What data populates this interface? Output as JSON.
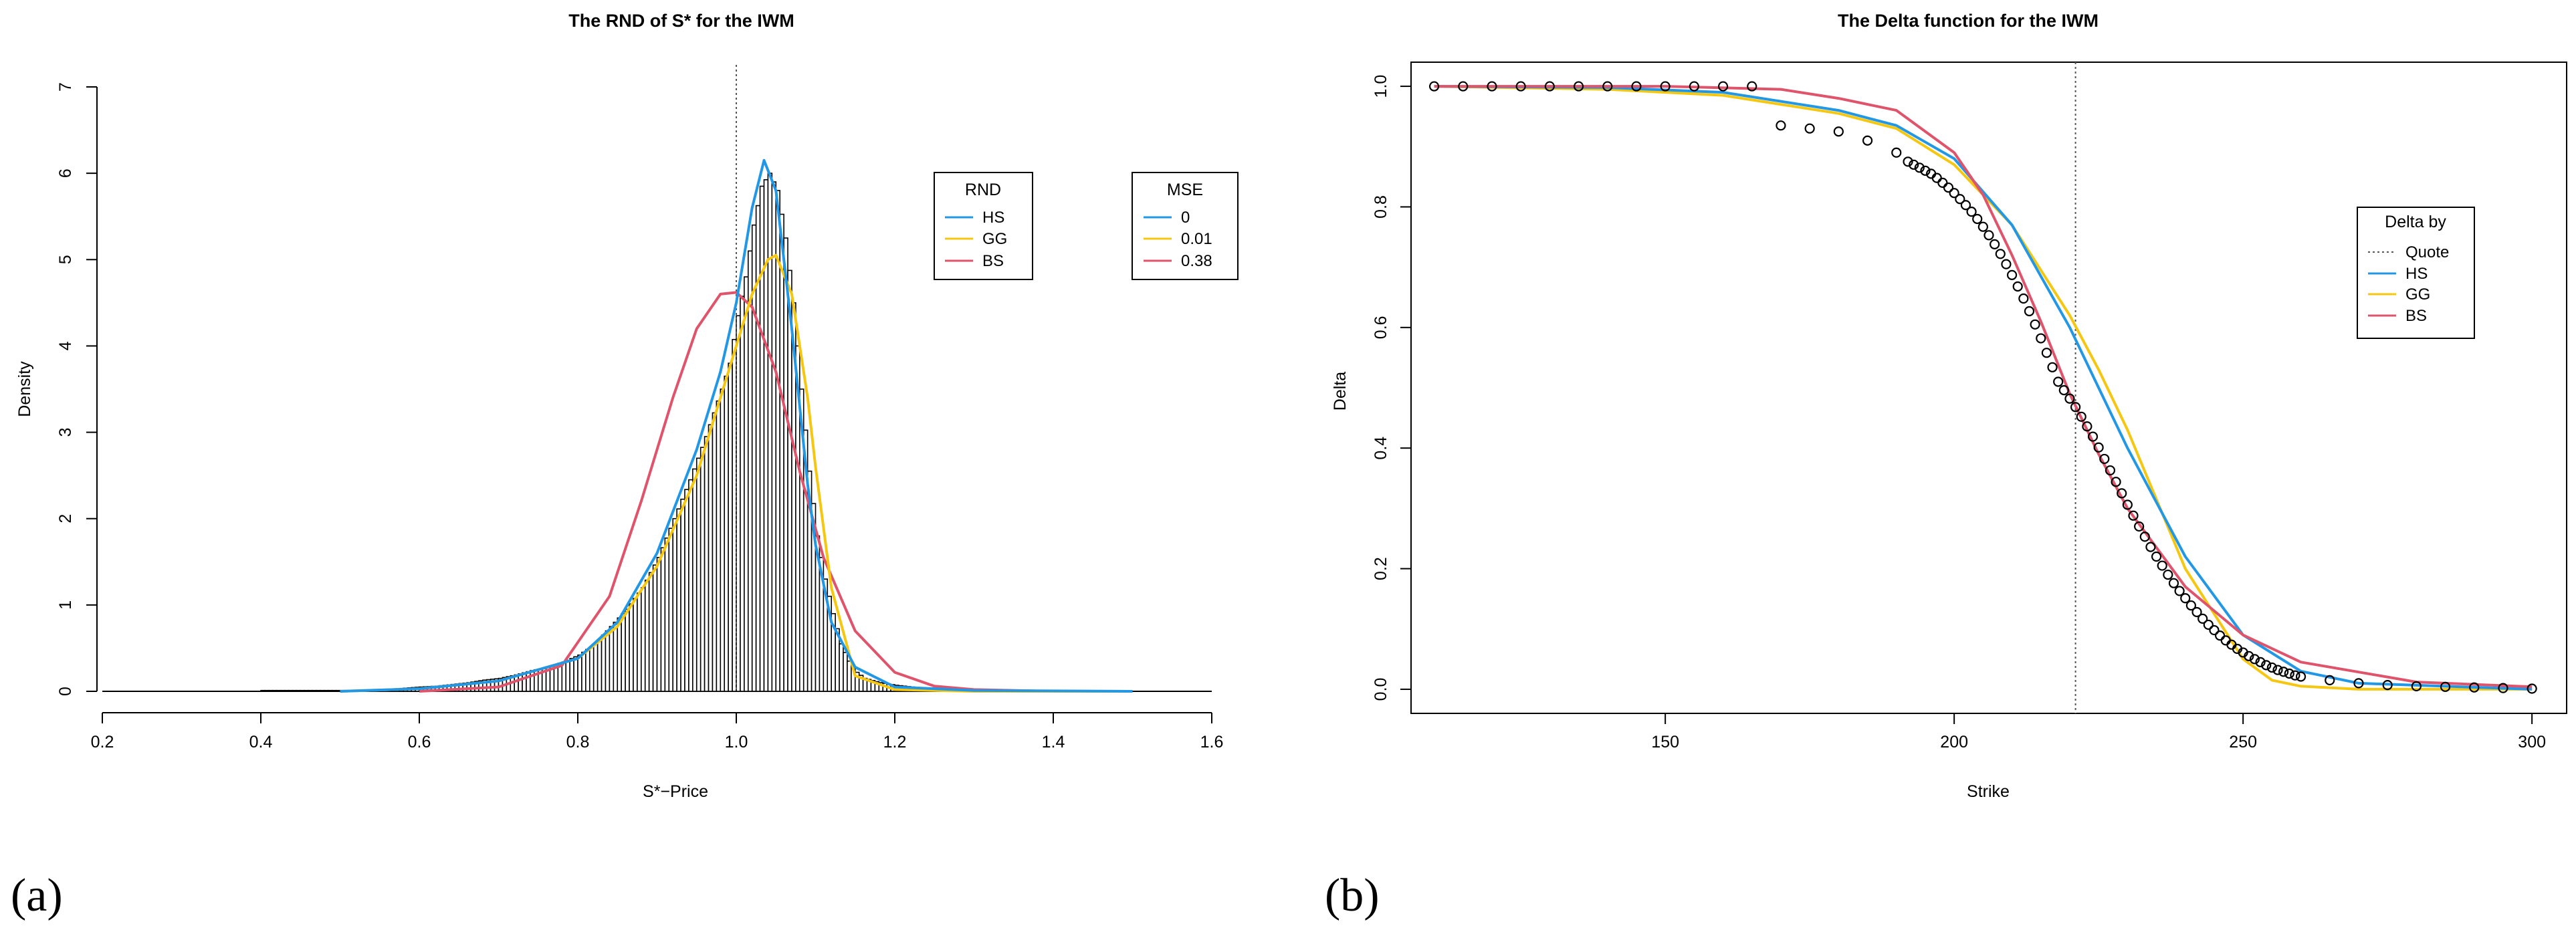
{
  "panels": [
    {
      "label": "(a)"
    },
    {
      "label": "(b)"
    }
  ],
  "colors": {
    "HS": "#2297E6",
    "GG": "#F5C710",
    "BS": "#DF536B",
    "quote": "#555555",
    "bars": "#000000"
  },
  "chart_data": [
    {
      "type": "histogram",
      "title": "The RND of S* for the IWM",
      "xlabel": "S*−Price",
      "ylabel": "Density",
      "xlim": [
        0.2,
        1.6
      ],
      "ylim": [
        0,
        7
      ],
      "xticks": [
        0.2,
        0.4,
        0.6,
        0.8,
        1.0,
        1.2,
        1.4,
        1.6
      ],
      "xtick_labels": [
        "0.2",
        "0.4",
        "0.6",
        "0.8",
        "1.0",
        "1.2",
        "1.4",
        "1.6"
      ],
      "yticks": [
        0,
        1,
        2,
        3,
        4,
        5,
        6,
        7
      ],
      "ytick_labels": [
        "0",
        "1",
        "2",
        "3",
        "4",
        "5",
        "6",
        "7"
      ],
      "quote_line_x": 1.0,
      "histogram": {
        "bin_width": 0.005,
        "bins": [
          [
            0.4,
            0.01
          ],
          [
            0.41,
            0.01
          ],
          [
            0.48,
            0.01
          ],
          [
            0.53,
            0.01
          ],
          [
            0.55,
            0.02
          ],
          [
            0.57,
            0.03
          ],
          [
            0.6,
            0.05
          ],
          [
            0.62,
            0.06
          ],
          [
            0.64,
            0.08
          ],
          [
            0.66,
            0.1
          ],
          [
            0.68,
            0.13
          ],
          [
            0.7,
            0.15
          ],
          [
            0.72,
            0.19
          ],
          [
            0.74,
            0.24
          ],
          [
            0.76,
            0.28
          ],
          [
            0.78,
            0.34
          ],
          [
            0.8,
            0.42
          ],
          [
            0.82,
            0.55
          ],
          [
            0.84,
            0.75
          ],
          [
            0.86,
            0.95
          ],
          [
            0.88,
            1.2
          ],
          [
            0.9,
            1.55
          ],
          [
            0.92,
            2.0
          ],
          [
            0.94,
            2.45
          ],
          [
            0.96,
            2.95
          ],
          [
            0.98,
            3.5
          ],
          [
            0.99,
            3.8
          ],
          [
            1.0,
            4.35
          ],
          [
            1.01,
            4.8
          ],
          [
            1.02,
            5.4
          ],
          [
            1.03,
            5.85
          ],
          [
            1.04,
            6.0
          ],
          [
            1.05,
            5.8
          ],
          [
            1.06,
            5.25
          ],
          [
            1.07,
            4.5
          ],
          [
            1.08,
            3.5
          ],
          [
            1.09,
            2.55
          ],
          [
            1.1,
            1.8
          ],
          [
            1.11,
            1.3
          ],
          [
            1.12,
            0.9
          ],
          [
            1.13,
            0.55
          ],
          [
            1.14,
            0.35
          ],
          [
            1.15,
            0.22
          ],
          [
            1.16,
            0.15
          ],
          [
            1.18,
            0.1
          ],
          [
            1.2,
            0.07
          ],
          [
            1.22,
            0.05
          ],
          [
            1.24,
            0.03
          ],
          [
            1.27,
            0.02
          ],
          [
            1.3,
            0.01
          ],
          [
            1.34,
            0.01
          ]
        ]
      },
      "series": [
        {
          "name": "HS",
          "x": [
            0.5,
            0.6,
            0.7,
            0.8,
            0.85,
            0.9,
            0.95,
            0.98,
            1.0,
            1.02,
            1.035,
            1.05,
            1.07,
            1.09,
            1.1,
            1.12,
            1.15,
            1.2,
            1.3,
            1.5
          ],
          "y": [
            0.0,
            0.03,
            0.12,
            0.38,
            0.8,
            1.6,
            2.8,
            3.7,
            4.5,
            5.6,
            6.15,
            5.8,
            4.2,
            2.4,
            1.7,
            0.8,
            0.28,
            0.05,
            0.01,
            0.0
          ]
        },
        {
          "name": "GG",
          "x": [
            0.5,
            0.6,
            0.7,
            0.8,
            0.85,
            0.9,
            0.95,
            0.98,
            1.0,
            1.02,
            1.04,
            1.05,
            1.07,
            1.09,
            1.1,
            1.12,
            1.15,
            1.2,
            1.3,
            1.5
          ],
          "y": [
            0.0,
            0.03,
            0.12,
            0.38,
            0.75,
            1.45,
            2.5,
            3.4,
            4.0,
            4.6,
            5.0,
            5.05,
            4.6,
            3.4,
            2.6,
            1.2,
            0.18,
            0.02,
            0.0,
            0.0
          ]
        },
        {
          "name": "BS",
          "x": [
            0.6,
            0.7,
            0.78,
            0.84,
            0.88,
            0.92,
            0.95,
            0.98,
            1.0,
            1.02,
            1.05,
            1.08,
            1.11,
            1.15,
            1.2,
            1.25,
            1.3,
            1.4,
            1.5
          ],
          "y": [
            0.0,
            0.05,
            0.3,
            1.1,
            2.2,
            3.4,
            4.2,
            4.6,
            4.62,
            4.45,
            3.7,
            2.55,
            1.55,
            0.7,
            0.22,
            0.06,
            0.02,
            0.0,
            0.0
          ]
        }
      ],
      "legends": [
        {
          "title": "RND",
          "entries": [
            "HS",
            "GG",
            "BS"
          ],
          "placement": "top-right"
        },
        {
          "title": "MSE",
          "entries": [
            "0",
            "0.01",
            "0.38"
          ],
          "placement": "top-right"
        }
      ]
    },
    {
      "type": "scatter",
      "title": "The Delta function for the IWM",
      "xlabel": "Strike",
      "ylabel": "Delta",
      "xlim": [
        106,
        306
      ],
      "ylim": [
        -0.04,
        1.04
      ],
      "xticks": [
        150,
        200,
        250,
        300
      ],
      "xtick_labels": [
        "150",
        "200",
        "250",
        "300"
      ],
      "yticks": [
        0.0,
        0.2,
        0.4,
        0.6,
        0.8,
        1.0
      ],
      "ytick_labels": [
        "0.0",
        "0.2",
        "0.4",
        "0.6",
        "0.8",
        "1.0"
      ],
      "quote_line_x": 221,
      "points": {
        "x": [
          110,
          115,
          120,
          125,
          130,
          135,
          140,
          145,
          150,
          155,
          160,
          165,
          170,
          175,
          180,
          185,
          190,
          192,
          193,
          194,
          195,
          196,
          197,
          198,
          199,
          200,
          201,
          202,
          203,
          204,
          205,
          206,
          207,
          208,
          209,
          210,
          211,
          212,
          213,
          214,
          215,
          216,
          217,
          218,
          219,
          220,
          221,
          222,
          223,
          224,
          225,
          226,
          227,
          228,
          229,
          230,
          231,
          232,
          233,
          234,
          235,
          236,
          237,
          238,
          239,
          240,
          241,
          242,
          243,
          244,
          245,
          246,
          247,
          248,
          249,
          250,
          251,
          252,
          253,
          254,
          255,
          256,
          257,
          258,
          259,
          260,
          265,
          270,
          275,
          280,
          285,
          290,
          295,
          300
        ],
        "y": [
          1.0,
          1.0,
          1.0,
          1.0,
          1.0,
          1.0,
          1.0,
          1.0,
          1.0,
          1.0,
          1.0,
          1.0,
          0.935,
          0.93,
          0.925,
          0.91,
          0.89,
          0.875,
          0.87,
          0.865,
          0.86,
          0.855,
          0.848,
          0.84,
          0.832,
          0.823,
          0.813,
          0.803,
          0.792,
          0.78,
          0.767,
          0.753,
          0.738,
          0.722,
          0.705,
          0.687,
          0.668,
          0.648,
          0.627,
          0.605,
          0.582,
          0.558,
          0.534,
          0.51,
          0.496,
          0.482,
          0.468,
          0.452,
          0.436,
          0.419,
          0.401,
          0.382,
          0.363,
          0.344,
          0.325,
          0.306,
          0.288,
          0.27,
          0.253,
          0.236,
          0.22,
          0.205,
          0.19,
          0.176,
          0.163,
          0.151,
          0.139,
          0.128,
          0.117,
          0.107,
          0.098,
          0.089,
          0.081,
          0.074,
          0.067,
          0.061,
          0.055,
          0.05,
          0.045,
          0.04,
          0.036,
          0.032,
          0.029,
          0.026,
          0.023,
          0.021,
          0.015,
          0.01,
          0.007,
          0.005,
          0.004,
          0.003,
          0.002,
          0.001
        ]
      },
      "series": [
        {
          "name": "HS",
          "x": [
            110,
            140,
            160,
            180,
            190,
            200,
            210,
            220,
            225,
            230,
            240,
            250,
            260,
            270,
            300
          ],
          "y": [
            1.0,
            0.998,
            0.99,
            0.96,
            0.935,
            0.88,
            0.77,
            0.6,
            0.5,
            0.4,
            0.22,
            0.09,
            0.03,
            0.01,
            0.0
          ]
        },
        {
          "name": "GG",
          "x": [
            110,
            140,
            160,
            180,
            190,
            200,
            210,
            220,
            225,
            230,
            240,
            250,
            255,
            260,
            270,
            300
          ],
          "y": [
            1.0,
            0.995,
            0.985,
            0.955,
            0.93,
            0.87,
            0.77,
            0.62,
            0.53,
            0.43,
            0.2,
            0.05,
            0.015,
            0.005,
            0.0,
            0.0
          ]
        },
        {
          "name": "BS",
          "x": [
            110,
            150,
            170,
            180,
            190,
            200,
            205,
            210,
            215,
            220,
            225,
            230,
            240,
            250,
            260,
            280,
            300
          ],
          "y": [
            1.0,
            1.0,
            0.995,
            0.98,
            0.96,
            0.89,
            0.82,
            0.72,
            0.61,
            0.49,
            0.39,
            0.3,
            0.17,
            0.09,
            0.045,
            0.012,
            0.004
          ]
        }
      ],
      "legend": {
        "title": "Delta by",
        "entries": [
          "Quote",
          "HS",
          "GG",
          "BS"
        ],
        "placement": "right"
      }
    }
  ]
}
